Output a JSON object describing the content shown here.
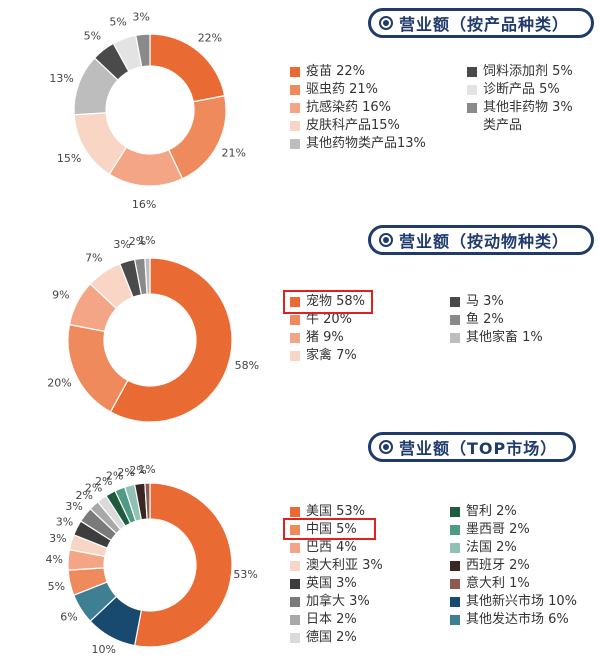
{
  "colors": {
    "orange": "#ea6a33",
    "orange2": "#ee8a5c",
    "orange3": "#f3a585",
    "pink": "#f8d5c5",
    "grey_light": "#d9d9d9",
    "grey_mid": "#9a9a9a",
    "grey_dark": "#4a4a4a",
    "navy": "#1f3a6b",
    "red": "#e0211d"
  },
  "chart_data": [
    {
      "type": "pie",
      "title": "营业额（按产品种类）",
      "slices": [
        {
          "label": "疫苗",
          "value": 22,
          "color": "#ea6a33"
        },
        {
          "label": "驱虫药",
          "value": 21,
          "color": "#ee8a5c"
        },
        {
          "label": "抗感染药",
          "value": 16,
          "color": "#f3a585"
        },
        {
          "label": "皮肤科产品",
          "value": 15,
          "color": "#f8d5c5"
        },
        {
          "label": "其他药物类产品",
          "value": 13,
          "color": "#bdbdbd"
        },
        {
          "label": "饲料添加剂",
          "value": 5,
          "color": "#4a4a4a"
        },
        {
          "label": "诊断产品",
          "value": 5,
          "color": "#e3e3e3"
        },
        {
          "label": "其他非药物类产品",
          "value": 3,
          "color": "#8a8a8a"
        }
      ],
      "legend_left": [
        "疫苗 22%",
        "驱虫药 21%",
        "抗感染药 16%",
        "皮肤科产品15%",
        "其他药物类产品13%"
      ],
      "legend_right": [
        "饲料添加剂 5%",
        "诊断产品 5%",
        "其他非药物 3%",
        "类产品"
      ]
    },
    {
      "type": "pie",
      "title": "营业额（按动物种类）",
      "slices": [
        {
          "label": "宠物",
          "value": 58,
          "color": "#ea6a33"
        },
        {
          "label": "牛",
          "value": 20,
          "color": "#ee8a5c"
        },
        {
          "label": "猪",
          "value": 9,
          "color": "#f3a585"
        },
        {
          "label": "家禽",
          "value": 7,
          "color": "#f8d5c5"
        },
        {
          "label": "马",
          "value": 3,
          "color": "#4a4a4a"
        },
        {
          "label": "鱼",
          "value": 2,
          "color": "#8a8a8a"
        },
        {
          "label": "其他家畜",
          "value": 1,
          "color": "#bdbdbd"
        }
      ],
      "legend_left": [
        "宠物 58%",
        "牛 20%",
        "猪 9%",
        "家禽 7%"
      ],
      "legend_right": [
        "马 3%",
        "鱼 2%",
        "其他家畜 1%"
      ],
      "highlight": "宠物 58%"
    },
    {
      "type": "pie",
      "title": "营业额（TOP市场）",
      "slices": [
        {
          "label": "美国",
          "value": 53,
          "color": "#ea6a33"
        },
        {
          "label": "其他新兴市场",
          "value": 10,
          "color": "#174a6e"
        },
        {
          "label": "其他发达市场",
          "value": 6,
          "color": "#3f7f94"
        },
        {
          "label": "中国",
          "value": 5,
          "color": "#ee8a5c"
        },
        {
          "label": "巴西",
          "value": 4,
          "color": "#f3a585"
        },
        {
          "label": "澳大利亚",
          "value": 3,
          "color": "#f8d5c5"
        },
        {
          "label": "英国",
          "value": 3,
          "color": "#3d3d3d"
        },
        {
          "label": "加拿大",
          "value": 3,
          "color": "#7a7a7a"
        },
        {
          "label": "日本",
          "value": 2,
          "color": "#a8a8a8"
        },
        {
          "label": "德国",
          "value": 2,
          "color": "#dadada"
        },
        {
          "label": "智利",
          "value": 2,
          "color": "#1f5c3e"
        },
        {
          "label": "墨西哥",
          "value": 2,
          "color": "#4f9a85"
        },
        {
          "label": "法国",
          "value": 2,
          "color": "#8fc1b5"
        },
        {
          "label": "西班牙",
          "value": 2,
          "color": "#3a2622"
        },
        {
          "label": "意大利",
          "value": 1,
          "color": "#8c5a4e"
        }
      ],
      "legend_left": [
        "美国 53%",
        "中国 5%",
        "巴西 4%",
        "澳大利亚 3%",
        "英国 3%",
        "加拿大 3%",
        "日本 2%",
        "德国 2%"
      ],
      "legend_right": [
        "智利 2%",
        "墨西哥 2%",
        "法国 2%",
        "西班牙 2%",
        "意大利 1%",
        "其他新兴市场 10%",
        "其他发达市场 6%"
      ],
      "highlight": "中国 5%"
    }
  ]
}
